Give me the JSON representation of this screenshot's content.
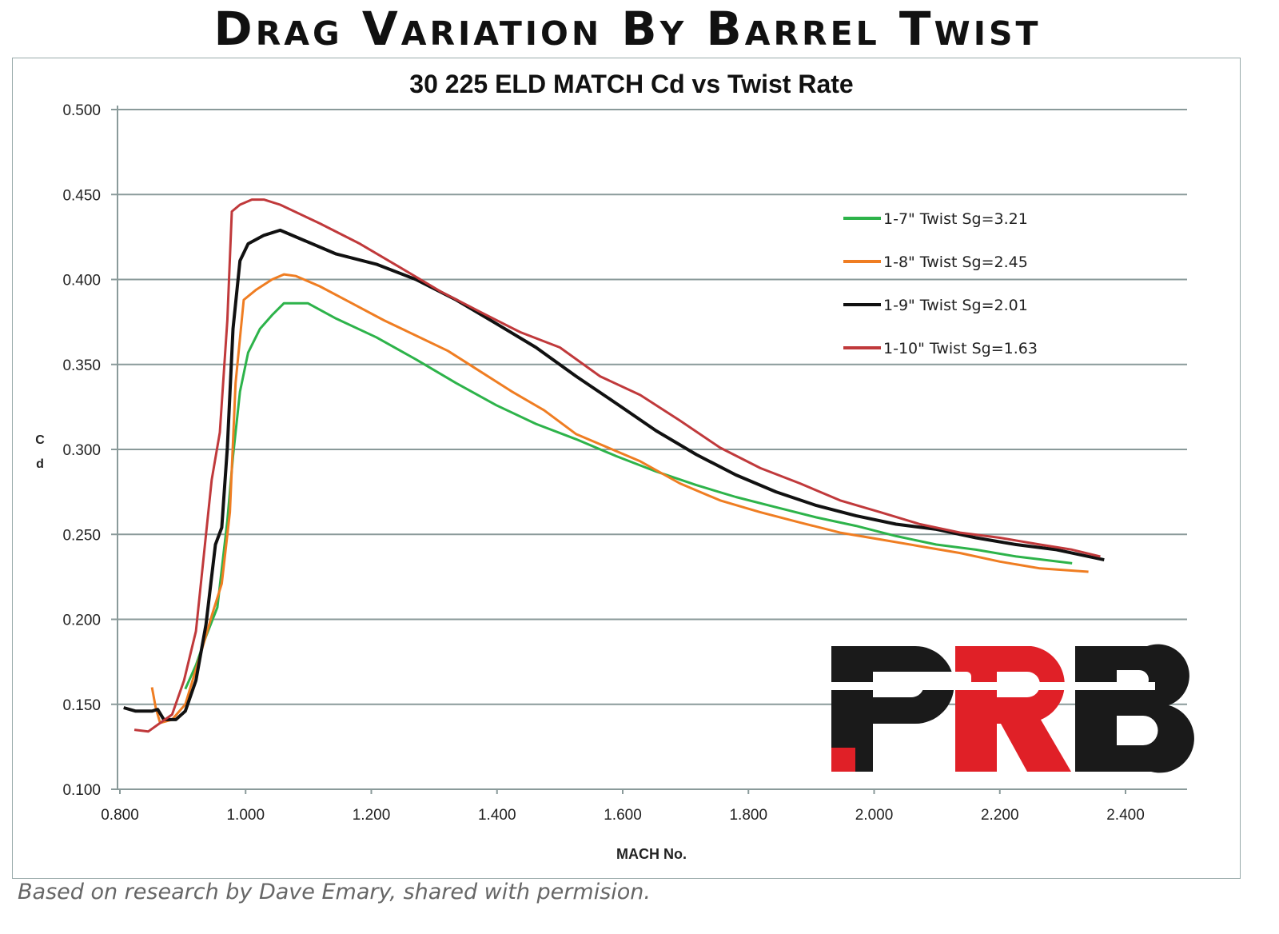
{
  "header": {
    "title": "Drag Variation By Barrel Twist"
  },
  "footnote": "Based on research by Dave Emary, shared with permision.",
  "logo": {
    "text": "PRB",
    "colors": [
      "#1a1a1a",
      "#e02027",
      "#1a1a1a"
    ]
  },
  "chart_data": {
    "type": "line",
    "title": "30 225 ELD MATCH Cd vs Twist Rate",
    "xlabel": "MACH No.",
    "ylabel": "Cd",
    "xlim": [
      0.8,
      2.4
    ],
    "ylim": [
      0.1,
      0.5
    ],
    "xticks": [
      "0.800",
      "1.000",
      "1.200",
      "1.400",
      "1.600",
      "1.800",
      "2.000",
      "2.200",
      "2.400"
    ],
    "yticks": [
      "0.100",
      "0.150",
      "0.200",
      "0.250",
      "0.300",
      "0.350",
      "0.400",
      "0.450",
      "0.500"
    ],
    "grid": "horizontal",
    "legend_position": "right",
    "series": [
      {
        "name": "1-7\" Twist Sg=3.21",
        "color": "#2db34a",
        "x": [
          0.904,
          0.921,
          0.937,
          0.955,
          0.971,
          0.98,
          0.991,
          1.004,
          1.023,
          1.042,
          1.061,
          1.099,
          1.144,
          1.208,
          1.271,
          1.335,
          1.399,
          1.462,
          1.526,
          1.59,
          1.653,
          1.717,
          1.78,
          1.844,
          1.908,
          1.971,
          2.035,
          2.099,
          2.162,
          2.226,
          2.315
        ],
        "y": [
          0.159,
          0.173,
          0.19,
          0.207,
          0.258,
          0.296,
          0.334,
          0.357,
          0.371,
          0.379,
          0.386,
          0.386,
          0.377,
          0.366,
          0.353,
          0.339,
          0.326,
          0.315,
          0.306,
          0.296,
          0.287,
          0.279,
          0.272,
          0.266,
          0.26,
          0.255,
          0.249,
          0.244,
          0.241,
          0.237,
          0.233
        ]
      },
      {
        "name": "1-8\" Twist Sg=2.45",
        "color": "#ef7d22",
        "x": [
          0.851,
          0.857,
          0.864,
          0.883,
          0.904,
          0.927,
          0.946,
          0.962,
          0.975,
          0.984,
          0.997,
          1.017,
          1.042,
          1.061,
          1.08,
          1.118,
          1.169,
          1.22,
          1.271,
          1.322,
          1.373,
          1.424,
          1.475,
          1.526,
          1.577,
          1.628,
          1.691,
          1.755,
          1.819,
          1.882,
          1.946,
          2.01,
          2.073,
          2.137,
          2.2,
          2.264,
          2.341
        ],
        "y": [
          0.16,
          0.148,
          0.139,
          0.141,
          0.15,
          0.178,
          0.202,
          0.221,
          0.263,
          0.339,
          0.388,
          0.394,
          0.4,
          0.403,
          0.402,
          0.396,
          0.386,
          0.376,
          0.367,
          0.358,
          0.346,
          0.334,
          0.323,
          0.309,
          0.301,
          0.293,
          0.28,
          0.27,
          0.263,
          0.257,
          0.251,
          0.247,
          0.243,
          0.239,
          0.234,
          0.23,
          0.228
        ]
      },
      {
        "name": "1-9\" Twist Sg=2.01",
        "color": "#111111",
        "x": [
          0.806,
          0.825,
          0.851,
          0.86,
          0.87,
          0.889,
          0.904,
          0.921,
          0.937,
          0.952,
          0.962,
          0.971,
          0.98,
          0.991,
          1.004,
          1.029,
          1.055,
          1.093,
          1.144,
          1.208,
          1.271,
          1.335,
          1.399,
          1.462,
          1.526,
          1.59,
          1.653,
          1.717,
          1.78,
          1.844,
          1.908,
          1.971,
          2.035,
          2.099,
          2.162,
          2.226,
          2.29,
          2.366
        ],
        "y": [
          0.148,
          0.146,
          0.146,
          0.147,
          0.141,
          0.141,
          0.146,
          0.164,
          0.197,
          0.244,
          0.254,
          0.301,
          0.371,
          0.411,
          0.421,
          0.426,
          0.429,
          0.423,
          0.415,
          0.409,
          0.4,
          0.388,
          0.374,
          0.36,
          0.343,
          0.327,
          0.311,
          0.297,
          0.285,
          0.275,
          0.267,
          0.261,
          0.256,
          0.253,
          0.248,
          0.244,
          0.241,
          0.235
        ]
      },
      {
        "name": "1-10\" Twist Sg=1.63",
        "color": "#c0393b",
        "x": [
          0.823,
          0.845,
          0.864,
          0.883,
          0.902,
          0.921,
          0.946,
          0.959,
          0.971,
          0.978,
          0.991,
          1.01,
          1.029,
          1.055,
          1.118,
          1.182,
          1.246,
          1.31,
          1.373,
          1.437,
          1.5,
          1.564,
          1.628,
          1.691,
          1.755,
          1.819,
          1.882,
          1.946,
          2.01,
          2.073,
          2.137,
          2.2,
          2.264,
          2.315,
          2.36
        ],
        "y": [
          0.135,
          0.134,
          0.139,
          0.144,
          0.164,
          0.193,
          0.282,
          0.31,
          0.376,
          0.44,
          0.444,
          0.447,
          0.447,
          0.444,
          0.433,
          0.421,
          0.407,
          0.393,
          0.381,
          0.369,
          0.36,
          0.343,
          0.332,
          0.317,
          0.301,
          0.289,
          0.28,
          0.27,
          0.263,
          0.256,
          0.251,
          0.248,
          0.244,
          0.241,
          0.237
        ]
      }
    ]
  }
}
